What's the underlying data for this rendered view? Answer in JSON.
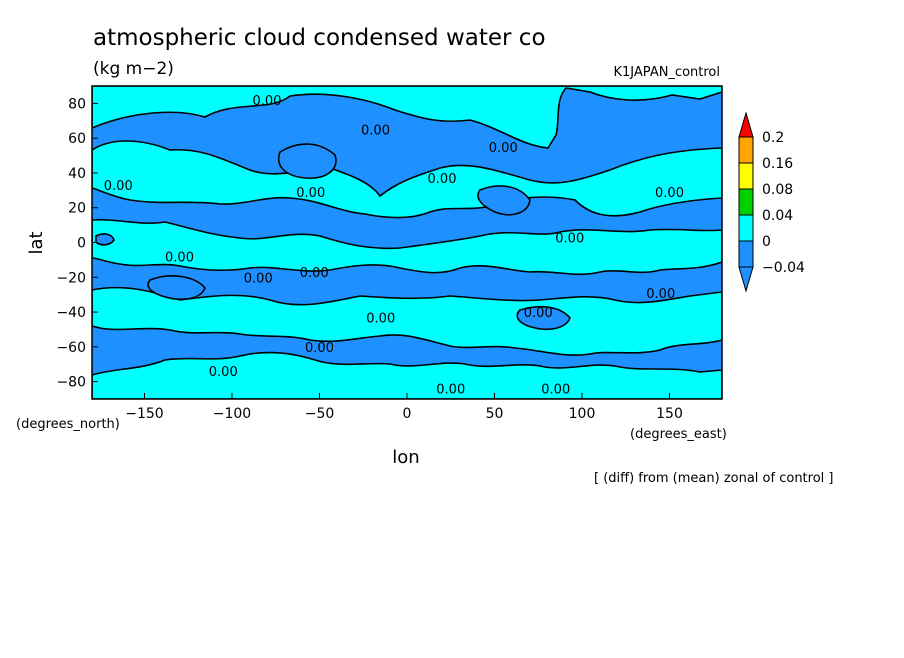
{
  "chart_data": {
    "type": "heatmap",
    "title": "atmospheric cloud condensed water co",
    "units": "(kg m−2)",
    "run_label": "K1JAPAN_control",
    "xlabel": "lon",
    "ylabel": "lat",
    "x_units": "(degrees_east)",
    "y_units": "(degrees_north)",
    "footnote": "[ (diff) from (mean) zonal of control ]",
    "xlim": [
      -180,
      180
    ],
    "ylim": [
      -90,
      90
    ],
    "x_ticks": [
      -150,
      -100,
      -50,
      0,
      50,
      100,
      150
    ],
    "y_ticks": [
      -80,
      -60,
      -40,
      -20,
      0,
      20,
      40,
      60,
      80
    ],
    "x_tick_labels": [
      "−150",
      "−100",
      "−50",
      "0",
      "50",
      "100",
      "150"
    ],
    "y_tick_labels": [
      "−80",
      "−60",
      "−40",
      "−20",
      "0",
      "20",
      "40",
      "60",
      "80"
    ],
    "colorbar": {
      "levels": [
        -0.04,
        0,
        0.04,
        0.08,
        0.16,
        0.2
      ],
      "labels": [
        "−0.04",
        "0",
        "0.04",
        "0.08",
        "0.16",
        "0.2"
      ],
      "colors": [
        "#1e90ff",
        "#00ffff",
        "#00d000",
        "#ffff00",
        "#ffa500",
        "#ff0000"
      ]
    },
    "contour_labels": [
      {
        "text": "0.00",
        "lon": -80,
        "lat": 82
      },
      {
        "text": "0.00",
        "lon": -18,
        "lat": 65
      },
      {
        "text": "0.00",
        "lon": 55,
        "lat": 55
      },
      {
        "text": "0.00",
        "lon": -165,
        "lat": 33
      },
      {
        "text": "0.00",
        "lon": -55,
        "lat": 29
      },
      {
        "text": "0.00",
        "lon": 20,
        "lat": 37
      },
      {
        "text": "0.00",
        "lon": 150,
        "lat": 29
      },
      {
        "text": "0.00",
        "lon": 93,
        "lat": 3
      },
      {
        "text": "0.00",
        "lon": -130,
        "lat": -8
      },
      {
        "text": "0.00",
        "lon": -85,
        "lat": -20
      },
      {
        "text": "0.00",
        "lon": -53,
        "lat": -17
      },
      {
        "text": "0.00",
        "lon": 145,
        "lat": -29
      },
      {
        "text": "0.00",
        "lon": -15,
        "lat": -43
      },
      {
        "text": "0.00",
        "lon": 75,
        "lat": -40
      },
      {
        "text": "0.00",
        "lon": -50,
        "lat": -60
      },
      {
        "text": "0.00",
        "lon": -105,
        "lat": -74
      },
      {
        "text": "0.00",
        "lon": 25,
        "lat": -84
      },
      {
        "text": "0.00",
        "lon": 85,
        "lat": -84
      }
    ]
  }
}
